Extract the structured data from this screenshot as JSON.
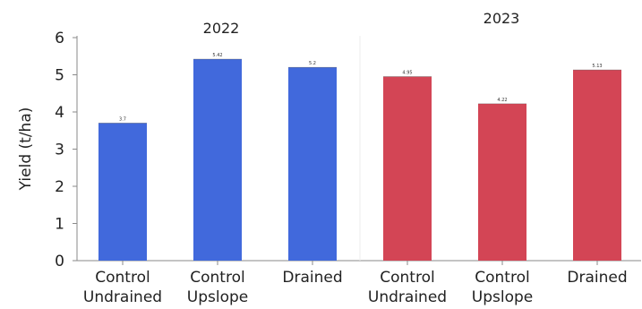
{
  "chart_data": {
    "type": "bar",
    "ylabel": "Yield (t/ha)",
    "ylim": [
      0,
      6
    ],
    "yticks": [
      0,
      1,
      2,
      3,
      4,
      5,
      6
    ],
    "grid": false,
    "groups": [
      {
        "label": "2022",
        "color": "#4169dc",
        "categories": [
          [
            "Control",
            "Undrained"
          ],
          [
            "Control",
            "Upslope"
          ],
          [
            "Drained"
          ]
        ],
        "values": [
          3.7,
          5.42,
          5.2
        ],
        "data_labels": [
          "3.7",
          "5.42",
          "5.2"
        ]
      },
      {
        "label": "2023",
        "color": "#d34555",
        "categories": [
          [
            "Control",
            "Undrained"
          ],
          [
            "Control",
            "Upslope"
          ],
          [
            "Drained"
          ]
        ],
        "values": [
          4.95,
          4.22,
          5.13
        ],
        "data_labels": [
          "4.95",
          "4.22",
          "5.13"
        ]
      }
    ]
  }
}
